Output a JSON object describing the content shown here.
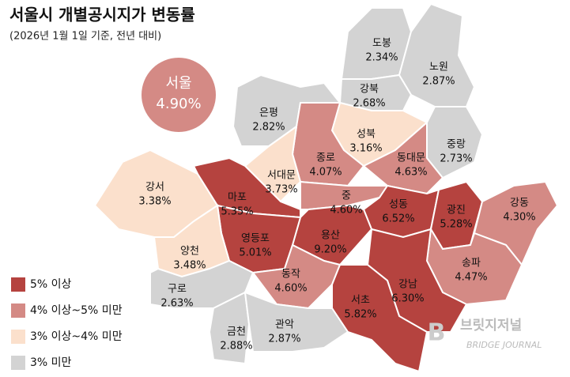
{
  "header": {
    "title": "서울시 개별공시지가 변동률",
    "subtitle": "(2026년 1월 1일 기준, 전년 대비)"
  },
  "seoul": {
    "name": "서울",
    "value": "4.90%",
    "color": "#d48a85"
  },
  "legend": [
    {
      "label": "5% 이상",
      "color": "#b5433f"
    },
    {
      "label": "4% 이상~5% 미만",
      "color": "#d48a85"
    },
    {
      "label": "3% 이상~4% 미만",
      "color": "#fbe0cc"
    },
    {
      "label": "3% 미만",
      "color": "#d3d3d3"
    }
  ],
  "districts": [
    {
      "name": "도봉",
      "value": "2.34%",
      "color": "#d3d3d3"
    },
    {
      "name": "노원",
      "value": "2.87%",
      "color": "#d3d3d3"
    },
    {
      "name": "강북",
      "value": "2.68%",
      "color": "#d3d3d3"
    },
    {
      "name": "은평",
      "value": "2.82%",
      "color": "#d3d3d3"
    },
    {
      "name": "성북",
      "value": "3.16%",
      "color": "#fbe0cc"
    },
    {
      "name": "중랑",
      "value": "2.73%",
      "color": "#d3d3d3"
    },
    {
      "name": "종로",
      "value": "4.07%",
      "color": "#d48a85"
    },
    {
      "name": "동대문",
      "value": "4.63%",
      "color": "#d48a85"
    },
    {
      "name": "서대문",
      "value": "3.73%",
      "color": "#fbe0cc"
    },
    {
      "name": "강서",
      "value": "3.38%",
      "color": "#fbe0cc"
    },
    {
      "name": "마포",
      "value": "5.35%",
      "color": "#b5433f"
    },
    {
      "name": "중",
      "value": "4.60%",
      "color": "#d48a85"
    },
    {
      "name": "성동",
      "value": "6.52%",
      "color": "#b5433f"
    },
    {
      "name": "광진",
      "value": "5.28%",
      "color": "#b5433f"
    },
    {
      "name": "강동",
      "value": "4.30%",
      "color": "#d48a85"
    },
    {
      "name": "용산",
      "value": "9.20%",
      "color": "#b5433f"
    },
    {
      "name": "영등포",
      "value": "5.01%",
      "color": "#b5433f"
    },
    {
      "name": "양천",
      "value": "3.48%",
      "color": "#fbe0cc"
    },
    {
      "name": "송파",
      "value": "4.47%",
      "color": "#d48a85"
    },
    {
      "name": "동작",
      "value": "4.60%",
      "color": "#d48a85"
    },
    {
      "name": "구로",
      "value": "2.63%",
      "color": "#d3d3d3"
    },
    {
      "name": "강남",
      "value": "6.30%",
      "color": "#b5433f"
    },
    {
      "name": "서초",
      "value": "5.82%",
      "color": "#b5433f"
    },
    {
      "name": "금천",
      "value": "2.88%",
      "color": "#d3d3d3"
    },
    {
      "name": "관악",
      "value": "2.87%",
      "color": "#d3d3d3"
    }
  ],
  "watermark": {
    "name": "브릿지저널",
    "sub": "BRIDGE JOURNAL"
  }
}
